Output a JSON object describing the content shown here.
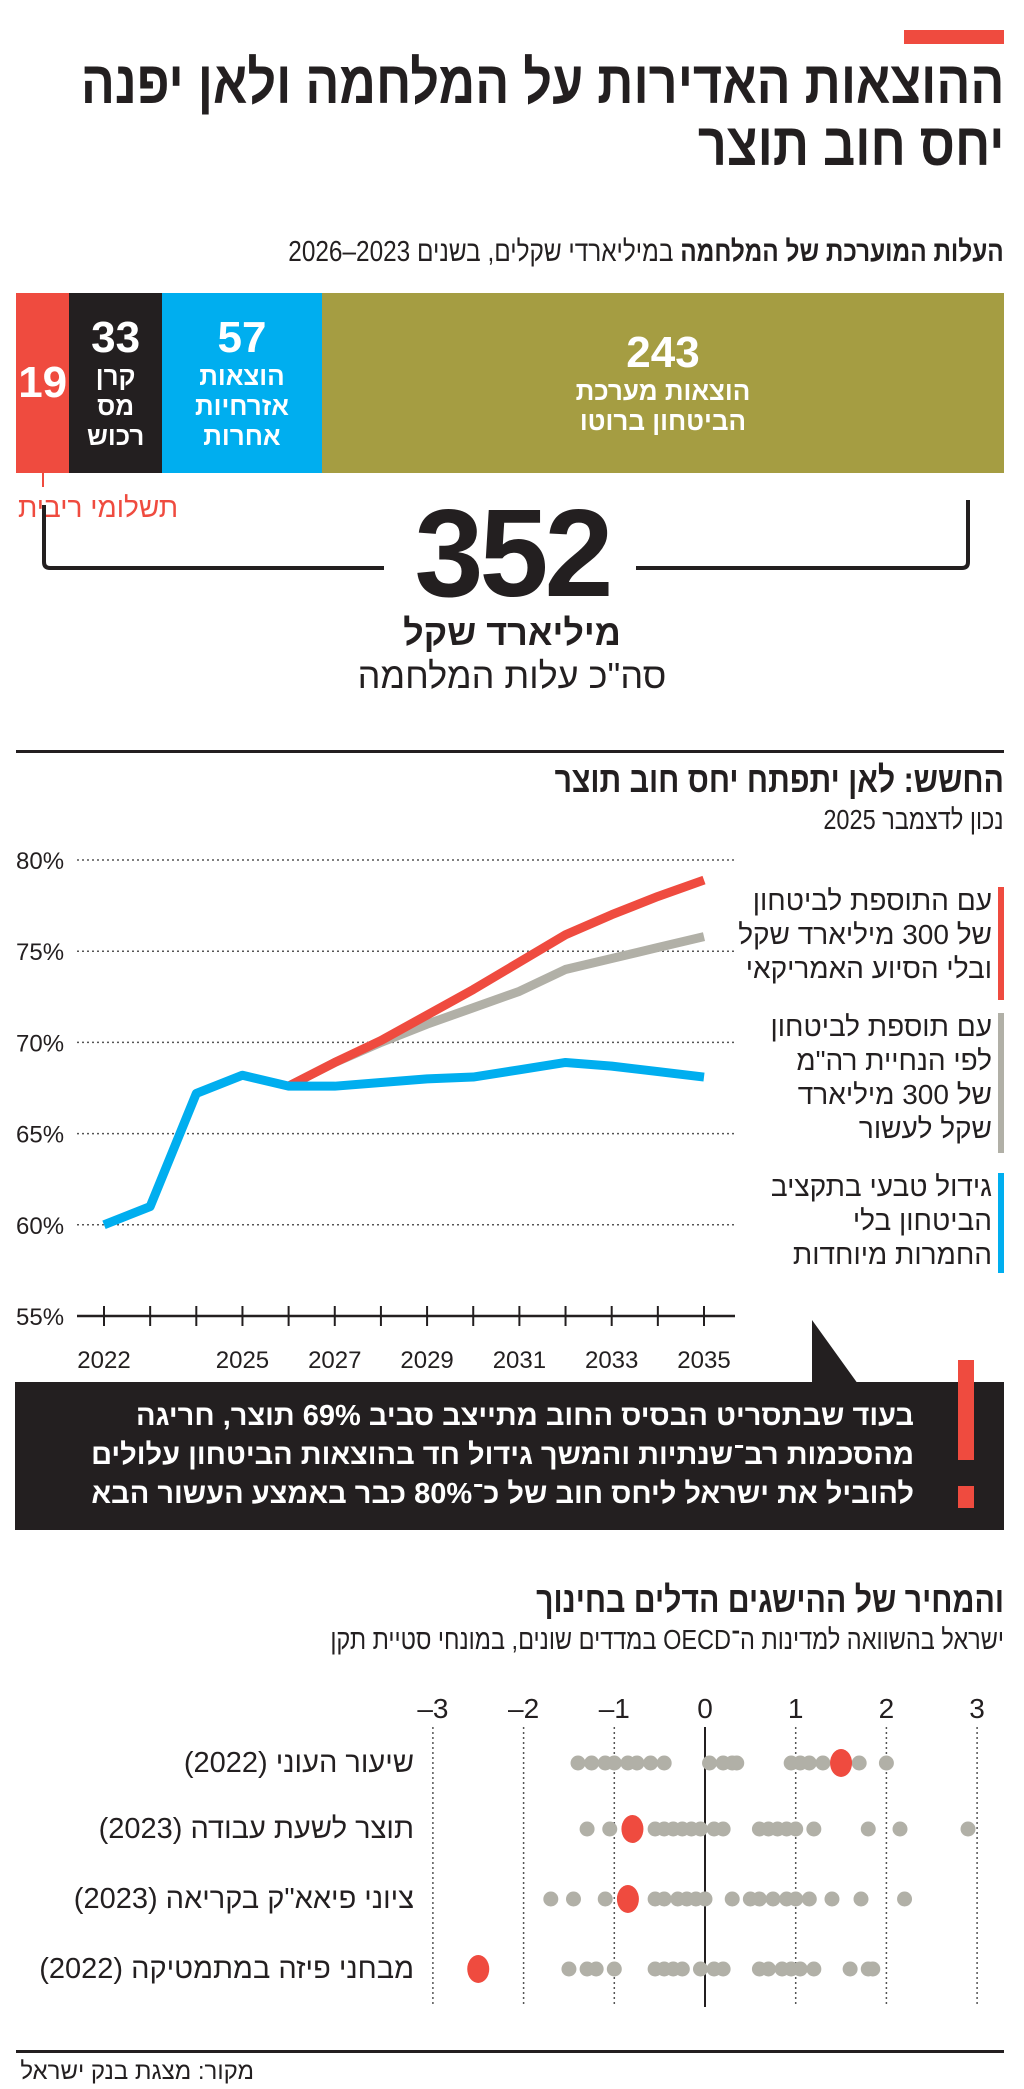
{
  "header": {
    "title_line1": "ההוצאות האדירות על המלחמה ולאן יפנה",
    "title_line2": "יחס חוב תוצר",
    "accent_color": "#ef4b3f"
  },
  "cost": {
    "subtitle_bold": "העלות המוערכת של המלחמה",
    "subtitle_rest": " במיליארדי שקלים, בשנים 2023–2026",
    "segments": [
      {
        "value": "243",
        "label": "הוצאות מערכת\nהביטחון ברוטו",
        "color": "#a59d42"
      },
      {
        "value": "57",
        "label": "הוצאות\nאזרחיות\nאחרות",
        "color": "#00aeef"
      },
      {
        "value": "33",
        "label": "קרן\nמס\nרכוש",
        "color": "#231f20"
      },
      {
        "value": "19",
        "label": "תשלומי ריבית",
        "color": "#ef4b3f"
      }
    ],
    "total": "352",
    "total_unit": "מיליארד שקל",
    "total_label": "סה\"כ עלות המלחמה"
  },
  "chart_data": [
    {
      "type": "line",
      "title": "החשש: לאן יתפתח יחס חוב תוצר",
      "subtitle": "נכון לדצמבר 2025",
      "x": [
        2022,
        2023,
        2024,
        2025,
        2026,
        2027,
        2028,
        2029,
        2030,
        2031,
        2032,
        2033,
        2034,
        2035
      ],
      "x_tick_labels": [
        "2022",
        "2025",
        "2027",
        "2029",
        "2031",
        "2033",
        "2035"
      ],
      "y_tick_labels": [
        "80%",
        "75%",
        "70%",
        "65%",
        "60%",
        "55%"
      ],
      "ylim": [
        55,
        80
      ],
      "grid": "horizontal dotted",
      "legend": "right",
      "series": [
        {
          "name": "עם התוספת לביטחון\nשל 300 מיליארד שקל\nובלי הסיוע האמריקאי",
          "color": "#ef4b3f",
          "values": [
            null,
            null,
            null,
            null,
            67.6,
            68.9,
            70.1,
            71.5,
            72.9,
            74.4,
            75.9,
            77.0,
            78.0,
            78.9
          ]
        },
        {
          "name": "עם תוספת לביטחון\nלפי הנחיית רה\"מ\nשל 300 מיליארד\nשקל לעשור",
          "color": "#b1b0a7",
          "values": [
            null,
            null,
            null,
            null,
            67.6,
            68.9,
            70.0,
            71.0,
            71.9,
            72.8,
            74.0,
            74.6,
            75.2,
            75.8
          ]
        },
        {
          "name": "גידול טבעי בתקציב\nהביטחון בלי\nהחמרות מיוחדות",
          "color": "#00aeef",
          "values": [
            60.0,
            61.0,
            67.2,
            68.2,
            67.6,
            67.6,
            67.8,
            68.0,
            68.1,
            68.5,
            68.9,
            68.7,
            68.4,
            68.1
          ]
        }
      ]
    },
    {
      "type": "scatter",
      "title": "והמחיר של ההישגים הדלים בחינוך",
      "subtitle": "ישראל בהשוואה למדינות ה־OECD במדדים שונים, במונחי סטיית תקן",
      "xlim": [
        -3,
        3
      ],
      "x_tick_labels": [
        "-3",
        "-2",
        "-1",
        "0",
        "1",
        "2",
        "3"
      ],
      "highlight_color": "#ef4b3f",
      "others_color": "#b1b0a7",
      "rows": [
        {
          "label": "שיעור העוני (2022)",
          "israel": 1.5,
          "others": [
            -1.4,
            -1.25,
            -1.1,
            -1.0,
            -0.85,
            -0.75,
            -0.6,
            -0.45,
            0.05,
            0.2,
            0.3,
            0.35,
            0.95,
            1.05,
            1.15,
            1.3,
            1.7,
            2.0
          ]
        },
        {
          "label": "תוצר לשעת עבודה (2023)",
          "israel": -0.8,
          "others": [
            -1.3,
            -1.05,
            -0.55,
            -0.45,
            -0.35,
            -0.25,
            -0.15,
            -0.05,
            0.1,
            0.2,
            0.6,
            0.7,
            0.8,
            0.9,
            1.0,
            1.2,
            1.8,
            2.15,
            2.9
          ]
        },
        {
          "label": "ציוני פיאא\"ק בקריאה (2023)",
          "israel": -0.85,
          "others": [
            -1.7,
            -1.45,
            -1.1,
            -0.55,
            -0.45,
            -0.3,
            -0.2,
            -0.1,
            0.0,
            0.3,
            0.5,
            0.6,
            0.75,
            0.9,
            1.0,
            1.15,
            1.4,
            1.72,
            2.2
          ]
        },
        {
          "label": "מבחני פיזה במתמטיקה (2022)",
          "israel": -2.5,
          "others": [
            -1.5,
            -1.3,
            -1.2,
            -1.0,
            -0.55,
            -0.45,
            -0.35,
            -0.25,
            -0.05,
            0.1,
            0.2,
            0.6,
            0.7,
            0.85,
            0.95,
            1.05,
            1.2,
            1.6,
            1.8,
            1.85
          ]
        }
      ]
    }
  ],
  "callout": {
    "lines": [
      "בעוד שבתסריט הבסיס החוב מתייצב סביב 69% תוצר, חריגה",
      "מהסכמות רב־שנתיות והמשך גידול חד בהוצאות הביטחון עלולים",
      "להוביל את ישראל ליחס חוב של כ־80% כבר באמצע העשור הבא"
    ],
    "icon": "exclamation-icon"
  },
  "source": "מקור: מצגת בנק ישראל"
}
